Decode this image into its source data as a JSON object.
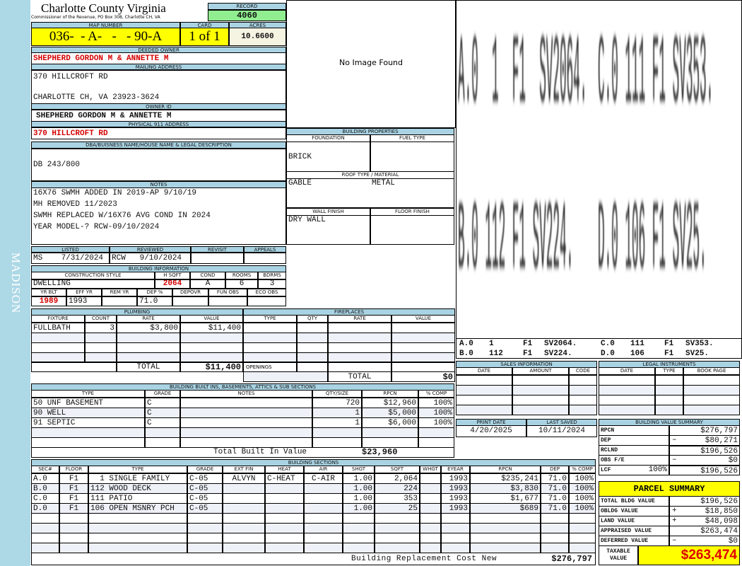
{
  "sidebar": {
    "label": "MADISON"
  },
  "header": {
    "title": "Charlotte County Virginia",
    "subtitle": "Commissioner of the Revenue, PO Box 308, Charlotte CH, VA"
  },
  "record": {
    "label": "RECORD",
    "value": "4060"
  },
  "map": {
    "label": "MAP NUMBER",
    "value": "036-  - A-   -   - 90-A"
  },
  "card": {
    "label": "CARD",
    "value": "1 of 1"
  },
  "acres": {
    "label": "ACRES",
    "value": "10.6600"
  },
  "deeded_owner": {
    "label": "DEEDED OWNER",
    "value": "SHEPHERD GORDON M & ANNETTE M"
  },
  "mailing": {
    "label": "MAILING ADDRESS",
    "line1": "370 HILLCROFT RD",
    "line2": "CHARLOTTE CH, VA 23923-3624"
  },
  "owner_id": {
    "label": "OWNER ID",
    "value": "SHEPHERD GORDON M & ANNETTE M"
  },
  "physical": {
    "label": "PHYSICAL 911 ADDRESS",
    "value": "370 HILLCROFT RD"
  },
  "dba": {
    "label": "DBA/BUISNESS NAME/HOUSE NAME & LEGAL DESCRIPTION",
    "value": "DB 243/800"
  },
  "notes": {
    "label": "NOTES",
    "lines": [
      "16X76 SWMH ADDED IN 2019-AP 9/10/19",
      "MH REMOVED 11/2023",
      "SWMH REPLACED W/16X76 AVG COND IN 2024",
      "YEAR MODEL-? RCW-09/10/2024"
    ]
  },
  "review": {
    "headers": [
      "LISTED",
      "REVIEWED",
      "REVISIT",
      "APPEALS"
    ],
    "values": [
      "MS    7/31/2024",
      "RCW   9/10/2024",
      "",
      ""
    ]
  },
  "building_info": {
    "label": "BUILDING INFORMATION",
    "headers1": [
      "CONSTRUCTION STYLE",
      "H SQFT",
      "COND",
      "ROOMS",
      "BDRMS"
    ],
    "values1": [
      "DWELLING",
      "2064",
      "A",
      "6",
      "3"
    ],
    "headers2": [
      "YR BLT",
      "EFF YR",
      "REM YR",
      "DEP %",
      "DEPOVR",
      "FUN OBS",
      "ECO OBS"
    ],
    "values2": [
      "1989",
      "1993",
      "",
      "71.0",
      "",
      "",
      ""
    ]
  },
  "plumbing": {
    "label": "PLUMBING",
    "headers": [
      "FIXTURE",
      "COUNT",
      "RATE",
      "VALUE"
    ],
    "rows": [
      [
        "FULLBATH",
        "3",
        "$3,800",
        "$11,400"
      ]
    ],
    "total_label": "TOTAL",
    "total": "$11,400"
  },
  "fireplaces": {
    "label": "FIREPLACES",
    "headers": [
      "TYPE",
      "QTY",
      "RATE",
      "VALUE"
    ],
    "openings_label": "OPENINGS",
    "total_label": "TOTAL",
    "total": "$0"
  },
  "image": {
    "text": "No Image Found"
  },
  "props": {
    "label": "BUILDING PROPERTIES",
    "foundation_label": "FOUNDATION",
    "fuel_label": "FUEL TYPE",
    "foundation": "BRICK",
    "fuel": "",
    "roof_label": "ROOF TYPE / MATERIAL",
    "roof_type": "GABLE",
    "roof_material": "METAL",
    "wall_label": "WALL FINISH",
    "floor_label": "FLOOR FINISH",
    "wall": "DRY WALL",
    "floor": ""
  },
  "sketch": {
    "labels": [
      [
        "A.0",
        "1",
        "F1",
        "SV2064."
      ],
      [
        "C.0",
        "111",
        "F1",
        "SV353."
      ],
      [
        "B.0",
        "112",
        "F1",
        "SV224."
      ],
      [
        "D.0",
        "106",
        "F1",
        "SV25."
      ]
    ],
    "big": [
      "A.0  1  F1  SV2064.",
      "C.0 111 F1 SV353.",
      "B.0 112 F1 SV224.",
      "D.0 106 F1 SV25."
    ]
  },
  "sales": {
    "label": "SALES INFORMATION",
    "headers": [
      "DATE",
      "AMOUNT",
      "CODE"
    ]
  },
  "legal": {
    "label": "LEGAL INSTRUMENTS",
    "headers": [
      "DATE",
      "TYPE",
      "BOOK PAGE"
    ]
  },
  "print": {
    "labels": [
      "PRINT DATE",
      "LAST SAVED"
    ],
    "values": [
      "4/20/2025",
      "10/11/2024"
    ]
  },
  "bvs": {
    "label": "BUILDING VALUE SUMMARY",
    "rows": [
      {
        "label": "RPCN",
        "extra": "",
        "sign": "",
        "value": "$276,797"
      },
      {
        "label": "DEP",
        "extra": "",
        "sign": "–",
        "value": "$80,271"
      },
      {
        "label": "RCLND",
        "extra": "",
        "sign": "",
        "value": "$196,526"
      },
      {
        "label": "OBS F/E",
        "extra": "",
        "sign": "–",
        "value": "$0"
      },
      {
        "label": "LCF",
        "extra": "100%",
        "sign": "",
        "value": "$196,526"
      }
    ]
  },
  "parcel": {
    "label": "PARCEL SUMMARY",
    "rows": [
      {
        "label": "TOTAL BLDG VALUE",
        "sign": "",
        "value": "$196,526"
      },
      {
        "label": "OBLDG VALUE",
        "sign": "+",
        "value": "$18,850"
      },
      {
        "label": "LAND VALUE",
        "sign": "+",
        "value": "$48,098"
      },
      {
        "label": "APPRAISED VALUE",
        "sign": "",
        "value": "$263,474"
      },
      {
        "label": "DEFERRED VALUE",
        "sign": "–",
        "value": "$0"
      }
    ],
    "taxable_label": "TAXABLE VALUE",
    "taxable": "$263,474"
  },
  "builtins": {
    "label": "BUILDING BUILT INS, BASEMENTS, ATTICS & SUB SECTIONS",
    "headers": [
      "TYPE",
      "GRADE",
      "NOTES",
      "QTY/SIZE",
      "RPCN",
      "% COMP"
    ],
    "rows": [
      [
        "50 UNF BASEMENT",
        "C",
        "",
        "720",
        "$12,960",
        "100%"
      ],
      [
        "90 WELL",
        "C",
        "",
        "1",
        "$5,000",
        "100%"
      ],
      [
        "91 SEPTIC",
        "C",
        "",
        "1",
        "$6,000",
        "100%"
      ]
    ],
    "total_label": "Total Built In Value",
    "total": "$23,960"
  },
  "sections": {
    "label": "BUILDING SECTIONS",
    "headers": [
      "SEC#",
      "FLOOR",
      "TYPE",
      "GRADE",
      "EXT FIN",
      "HEAT",
      "AIR",
      "SHGT",
      "SQFT",
      "WHGT",
      "EYEAR",
      "RPCN",
      "DEP",
      "% COMP"
    ],
    "rows": [
      [
        "A.0",
        "F1",
        "  1 SINGLE FAMILY",
        "C-05",
        "ALVYN",
        "C-HEAT",
        "C-AIR",
        "1.00",
        "2,064",
        "",
        "1993",
        "$235,241",
        "71.0",
        "100%"
      ],
      [
        "B.0",
        "F1",
        "112 WOOD DECK",
        "C-05",
        "",
        "",
        "",
        "1.00",
        "224",
        "",
        "1993",
        "$3,830",
        "71.0",
        "100%"
      ],
      [
        "C.0",
        "F1",
        "111 PATIO",
        "C-05",
        "",
        "",
        "",
        "1.00",
        "353",
        "",
        "1993",
        "$1,677",
        "71.0",
        "100%"
      ],
      [
        "D.0",
        "F1",
        "106 OPEN MSNRY PCH",
        "C-05",
        "",
        "",
        "",
        "1.00",
        "25",
        "",
        "1993",
        "$689",
        "71.0",
        "100%"
      ]
    ],
    "total_label": "Building Replacement Cost New",
    "total": "$276,797"
  },
  "colors": {
    "header": "#a9d3e3",
    "sidebar": "#add8e6",
    "record": "#90ee90",
    "highlight": "#ffff00",
    "red": "#d40000"
  }
}
